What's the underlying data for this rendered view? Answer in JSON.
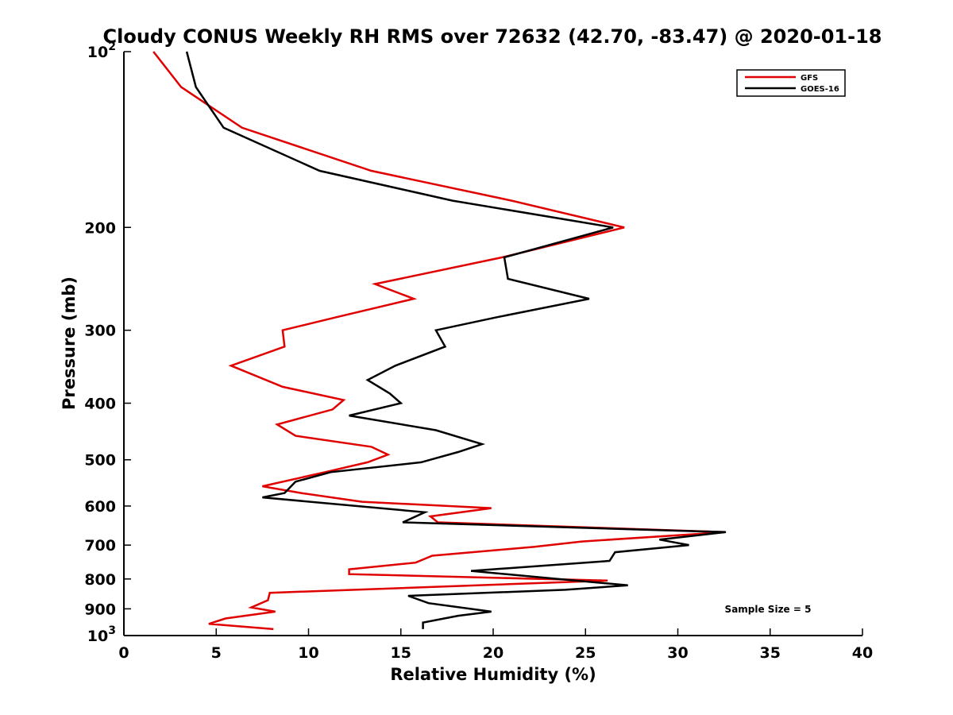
{
  "chart_data": {
    "type": "line",
    "title": "Cloudy CONUS Weekly RH RMS over 72632 (42.70, -83.47) @ 2020-01-18",
    "xlabel": "Relative Humidity (%)",
    "ylabel": "Pressure (mb)",
    "xlim": [
      0,
      40
    ],
    "ylim": [
      100,
      1000
    ],
    "yscale": "log",
    "y_reversed": true,
    "x_ticks": [
      "0",
      "5",
      "10",
      "15",
      "20",
      "25",
      "30",
      "35",
      "40"
    ],
    "y_ticks": [
      {
        "value": 100,
        "base": "10",
        "exp": "2"
      },
      {
        "value": 200,
        "label": "200"
      },
      {
        "value": 300,
        "label": "300"
      },
      {
        "value": 400,
        "label": "400"
      },
      {
        "value": 500,
        "label": "500"
      },
      {
        "value": 600,
        "label": "600"
      },
      {
        "value": 700,
        "label": "700"
      },
      {
        "value": 800,
        "label": "800"
      },
      {
        "value": 900,
        "label": "900"
      },
      {
        "value": 1000,
        "base": "10",
        "exp": "3"
      }
    ],
    "legend_position": "top-right",
    "grid": false,
    "annotation": "Sample Size = 5",
    "series": [
      {
        "name": "GFS",
        "color": "#e00000",
        "points": [
          [
            1.6,
            100
          ],
          [
            3.1,
            115
          ],
          [
            6.4,
            135
          ],
          [
            13.4,
            160
          ],
          [
            21.0,
            180
          ],
          [
            27.1,
            200
          ],
          [
            20.5,
            225
          ],
          [
            13.6,
            250
          ],
          [
            15.7,
            265
          ],
          [
            11.5,
            285
          ],
          [
            8.6,
            300
          ],
          [
            8.7,
            320
          ],
          [
            5.8,
            345
          ],
          [
            8.6,
            375
          ],
          [
            11.9,
            395
          ],
          [
            11.3,
            410
          ],
          [
            8.3,
            435
          ],
          [
            9.3,
            455
          ],
          [
            13.4,
            475
          ],
          [
            14.3,
            490
          ],
          [
            13.2,
            505
          ],
          [
            10.9,
            525
          ],
          [
            7.5,
            555
          ],
          [
            9.6,
            570
          ],
          [
            12.9,
            590
          ],
          [
            19.9,
            605
          ],
          [
            16.6,
            625
          ],
          [
            17.0,
            640
          ],
          [
            32.6,
            665
          ],
          [
            24.8,
            690
          ],
          [
            22.2,
            705
          ],
          [
            16.7,
            730
          ],
          [
            15.8,
            750
          ],
          [
            12.2,
            770
          ],
          [
            12.2,
            785
          ],
          [
            26.2,
            805
          ],
          [
            7.9,
            845
          ],
          [
            7.8,
            870
          ],
          [
            6.9,
            895
          ],
          [
            8.2,
            910
          ],
          [
            5.5,
            935
          ],
          [
            4.6,
            955
          ],
          [
            8.1,
            975
          ]
        ]
      },
      {
        "name": "GOES-16",
        "color": "#000000",
        "points": [
          [
            3.4,
            100
          ],
          [
            3.9,
            115
          ],
          [
            5.4,
            135
          ],
          [
            10.6,
            160
          ],
          [
            17.8,
            180
          ],
          [
            26.5,
            200
          ],
          [
            20.6,
            225
          ],
          [
            20.8,
            245
          ],
          [
            25.2,
            265
          ],
          [
            20.2,
            285
          ],
          [
            16.9,
            300
          ],
          [
            17.4,
            320
          ],
          [
            14.7,
            345
          ],
          [
            13.2,
            365
          ],
          [
            14.4,
            385
          ],
          [
            15.0,
            400
          ],
          [
            12.2,
            420
          ],
          [
            16.9,
            445
          ],
          [
            19.4,
            470
          ],
          [
            18.1,
            485
          ],
          [
            16.1,
            505
          ],
          [
            11.2,
            525
          ],
          [
            9.3,
            545
          ],
          [
            8.7,
            570
          ],
          [
            7.5,
            580
          ],
          [
            16.3,
            615
          ],
          [
            15.1,
            640
          ],
          [
            32.6,
            665
          ],
          [
            29.0,
            685
          ],
          [
            30.6,
            700
          ],
          [
            26.6,
            720
          ],
          [
            26.3,
            745
          ],
          [
            18.8,
            775
          ],
          [
            23.5,
            800
          ],
          [
            27.3,
            820
          ],
          [
            23.9,
            835
          ],
          [
            15.4,
            855
          ],
          [
            16.5,
            880
          ],
          [
            19.9,
            910
          ],
          [
            18.1,
            925
          ],
          [
            16.2,
            950
          ],
          [
            16.2,
            975
          ]
        ]
      }
    ]
  }
}
